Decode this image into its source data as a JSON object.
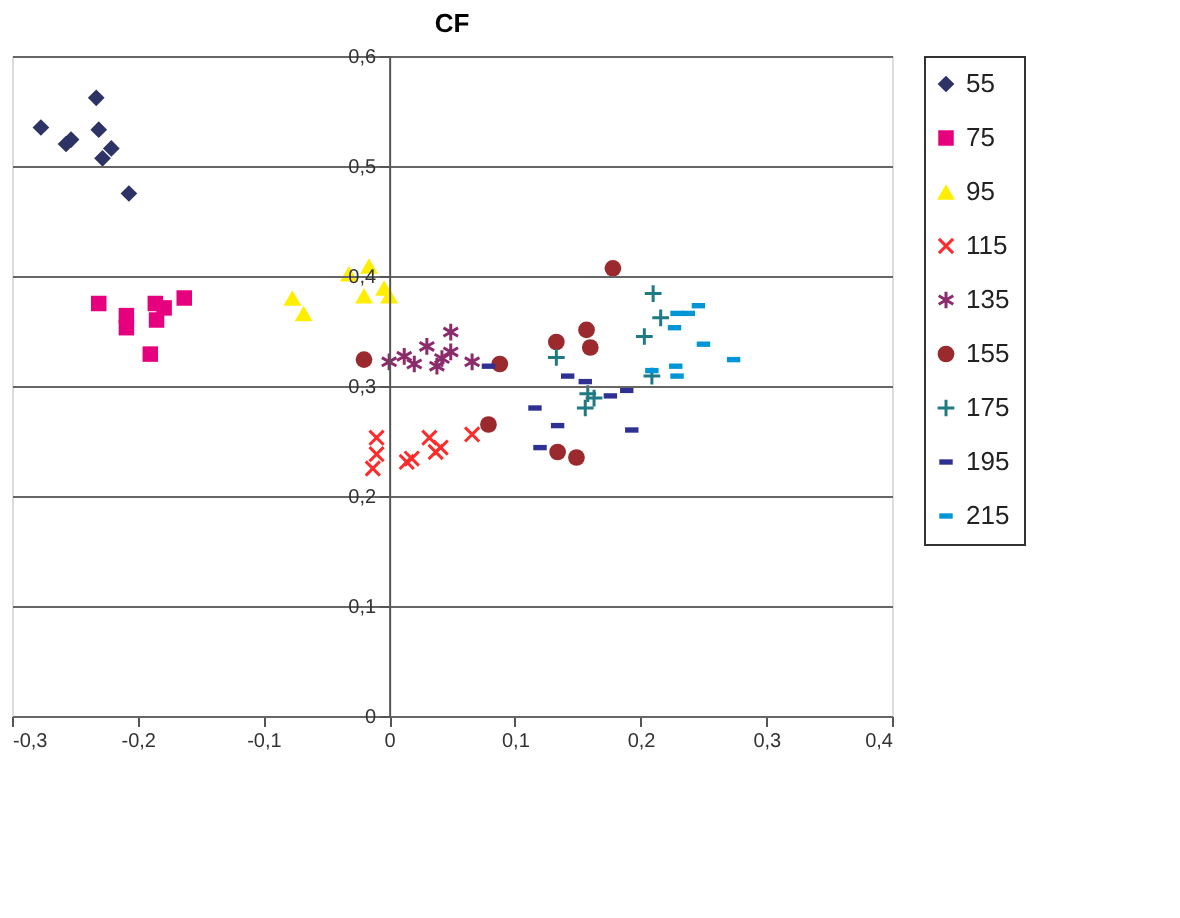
{
  "chart_data": {
    "type": "scatter",
    "title": "CF",
    "legend": "right",
    "grid": "y",
    "xlim": [
      -0.3,
      0.4
    ],
    "ylim": [
      0,
      0.6
    ],
    "xticks": [
      {
        "value": -0.3,
        "label": "-0,3"
      },
      {
        "value": -0.2,
        "label": "-0,2"
      },
      {
        "value": -0.1,
        "label": "-0,1"
      },
      {
        "value": 0,
        "label": "0"
      },
      {
        "value": 0.1,
        "label": "0,1"
      },
      {
        "value": 0.2,
        "label": "0,2"
      },
      {
        "value": 0.3,
        "label": "0,3"
      },
      {
        "value": 0.4,
        "label": "0,4"
      }
    ],
    "yticks": [
      {
        "value": 0,
        "label": "0"
      },
      {
        "value": 0.1,
        "label": "0,1"
      },
      {
        "value": 0.2,
        "label": "0,2"
      },
      {
        "value": 0.3,
        "label": "0,3"
      },
      {
        "value": 0.4,
        "label": "0,4"
      },
      {
        "value": 0.5,
        "label": "0,5"
      },
      {
        "value": 0.6,
        "label": "0,6"
      }
    ],
    "series": [
      {
        "name": "55",
        "color": "#2e3366",
        "marker": "diamond",
        "x": [
          -0.277,
          -0.253,
          -0.257,
          -0.233,
          -0.231,
          -0.221,
          -0.228,
          -0.207
        ],
        "values": [
          0.535,
          0.524,
          0.52,
          0.562,
          0.533,
          0.516,
          0.507,
          0.475
        ]
      },
      {
        "name": "75",
        "color": "#e6007e",
        "marker": "square",
        "x": [
          -0.231,
          -0.209,
          -0.209,
          -0.186,
          -0.185,
          -0.179,
          -0.19,
          -0.163
        ],
        "values": [
          0.375,
          0.364,
          0.353,
          0.375,
          0.36,
          0.371,
          0.329,
          0.38
        ]
      },
      {
        "name": "95",
        "color": "#ffee00",
        "marker": "triangle",
        "x": [
          -0.077,
          -0.068,
          -0.032,
          -0.016,
          -0.02,
          -0.004,
          0.0
        ],
        "values": [
          0.38,
          0.366,
          0.402,
          0.409,
          0.382,
          0.389,
          0.382
        ]
      },
      {
        "name": "115",
        "color": "#ff2a2a",
        "marker": "cross",
        "x": [
          -0.01,
          -0.01,
          -0.013,
          0.014,
          0.018,
          0.032,
          0.041,
          0.037,
          0.066
        ],
        "values": [
          0.253,
          0.238,
          0.225,
          0.231,
          0.234,
          0.253,
          0.244,
          0.24,
          0.256
        ]
      },
      {
        "name": "135",
        "color": "#8c2b6b",
        "marker": "cross",
        "x": [
          0.0,
          0.012,
          0.02,
          0.03,
          0.038,
          0.042,
          0.049,
          0.049,
          0.066
        ],
        "values": [
          0.322,
          0.327,
          0.32,
          0.336,
          0.318,
          0.325,
          0.349,
          0.331,
          0.322
        ]
      },
      {
        "name": "155",
        "color": "#9b2a2e",
        "marker": "circle",
        "x": [
          -0.02,
          0.079,
          0.088,
          0.133,
          0.157,
          0.16,
          0.178,
          0.134,
          0.149
        ],
        "values": [
          0.324,
          0.265,
          0.32,
          0.34,
          0.351,
          0.335,
          0.407,
          0.24,
          0.235
        ]
      },
      {
        "name": "175",
        "color": "#1f7a84",
        "marker": "plus",
        "x": [
          0.133,
          0.21,
          0.216,
          0.203,
          0.209,
          0.158,
          0.163,
          0.156
        ],
        "values": [
          0.326,
          0.384,
          0.362,
          0.345,
          0.309,
          0.293,
          0.289,
          0.28
        ]
      },
      {
        "name": "195",
        "color": "#2e3192",
        "x": [
          0.079,
          0.142,
          0.156,
          0.189,
          0.176,
          0.116,
          0.134,
          0.193,
          0.12
        ],
        "values": [
          0.318,
          0.309,
          0.304,
          0.296,
          0.291,
          0.28,
          0.264,
          0.26,
          0.244
        ]
      },
      {
        "name": "215",
        "color": "#0096d6",
        "x": [
          0.246,
          0.229,
          0.238,
          0.227,
          0.25,
          0.274,
          0.228,
          0.229,
          0.209
        ],
        "values": [
          0.373,
          0.366,
          0.366,
          0.353,
          0.338,
          0.324,
          0.318,
          0.309,
          0.314
        ]
      }
    ]
  }
}
